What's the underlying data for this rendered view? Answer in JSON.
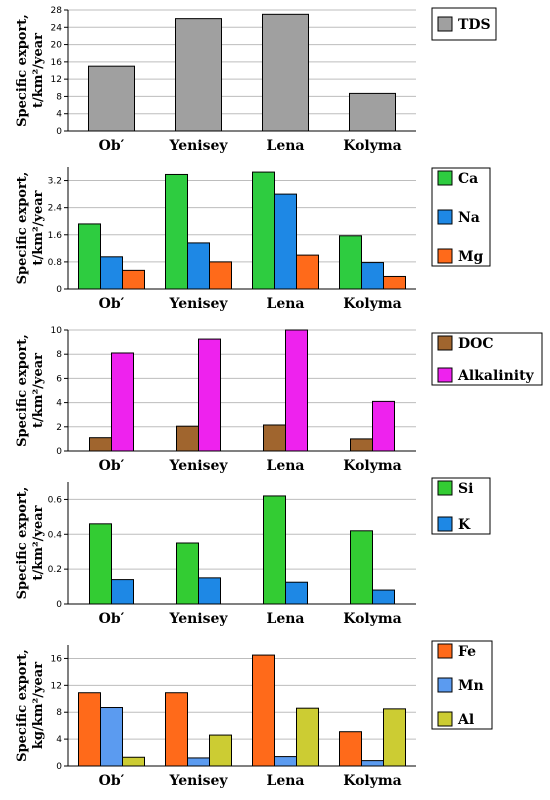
{
  "chart_data": [
    {
      "type": "bar",
      "categories": [
        "Ob′",
        "Yenisey",
        "Lena",
        "Kolyma"
      ],
      "ylabel_lines": [
        "Specific export,",
        "t/km²/year"
      ],
      "ylim": [
        0,
        28
      ],
      "yticks": [
        0,
        4,
        8,
        12,
        16,
        20,
        24,
        28
      ],
      "grid": true,
      "legend_position": "right",
      "series": [
        {
          "name": "TDS",
          "color": "#a0a0a0",
          "values": [
            15,
            26,
            27,
            8.7
          ]
        }
      ]
    },
    {
      "type": "bar",
      "categories": [
        "Ob′",
        "Yenisey",
        "Lena",
        "Kolyma"
      ],
      "ylabel_lines": [
        "Specific export,",
        "t/km²/year"
      ],
      "ylim": [
        0,
        3.6
      ],
      "yticks": [
        0,
        0.8,
        1.6,
        2.4,
        3.2
      ],
      "grid": true,
      "legend_position": "right",
      "series": [
        {
          "name": "Ca",
          "color": "#2ecc40",
          "values": [
            1.92,
            3.38,
            3.45,
            1.57
          ]
        },
        {
          "name": "Na",
          "color": "#1e88e5",
          "values": [
            0.95,
            1.36,
            2.8,
            0.78
          ]
        },
        {
          "name": "Mg",
          "color": "#ff6a1a",
          "values": [
            0.55,
            0.8,
            1.0,
            0.37
          ]
        }
      ]
    },
    {
      "type": "bar",
      "categories": [
        "Ob′",
        "Yenisey",
        "Lena",
        "Kolyma"
      ],
      "ylabel_lines": [
        "Specific export,",
        "t/km²/year"
      ],
      "ylim": [
        0,
        10
      ],
      "yticks": [
        0,
        2,
        4,
        6,
        8,
        10
      ],
      "grid": true,
      "legend_position": "right",
      "series": [
        {
          "name": "DOC",
          "color": "#a0652e",
          "values": [
            1.1,
            2.05,
            2.15,
            1.0
          ]
        },
        {
          "name": "Alkalinity",
          "color": "#ee22ee",
          "values": [
            8.1,
            9.25,
            10.0,
            4.1
          ]
        }
      ]
    },
    {
      "type": "bar",
      "categories": [
        "Ob′",
        "Yenisey",
        "Lena",
        "Kolyma"
      ],
      "ylabel_lines": [
        "Specific export,",
        "t/km²/year"
      ],
      "ylim": [
        0,
        0.7
      ],
      "yticks": [
        0,
        0.2,
        0.4,
        0.6
      ],
      "grid": true,
      "legend_position": "right",
      "series": [
        {
          "name": "Si",
          "color": "#33cc33",
          "values": [
            0.46,
            0.35,
            0.62,
            0.42
          ]
        },
        {
          "name": "K",
          "color": "#1e88e5",
          "values": [
            0.14,
            0.15,
            0.125,
            0.08
          ]
        }
      ]
    },
    {
      "type": "bar",
      "categories": [
        "Ob′",
        "Yenisey",
        "Lena",
        "Kolyma"
      ],
      "ylabel_lines": [
        "Specific export,",
        "kg/km²/year"
      ],
      "ylim": [
        0,
        18
      ],
      "yticks": [
        0,
        4,
        8,
        12,
        16
      ],
      "grid": true,
      "legend_position": "right",
      "series": [
        {
          "name": "Fe",
          "color": "#ff6a1a",
          "values": [
            10.9,
            10.9,
            16.5,
            5.1
          ]
        },
        {
          "name": "Mn",
          "color": "#5b9bf0",
          "values": [
            8.7,
            1.2,
            1.4,
            0.8
          ]
        },
        {
          "name": "Al",
          "color": "#cccc33",
          "values": [
            1.3,
            4.6,
            8.6,
            8.5
          ]
        }
      ]
    }
  ]
}
